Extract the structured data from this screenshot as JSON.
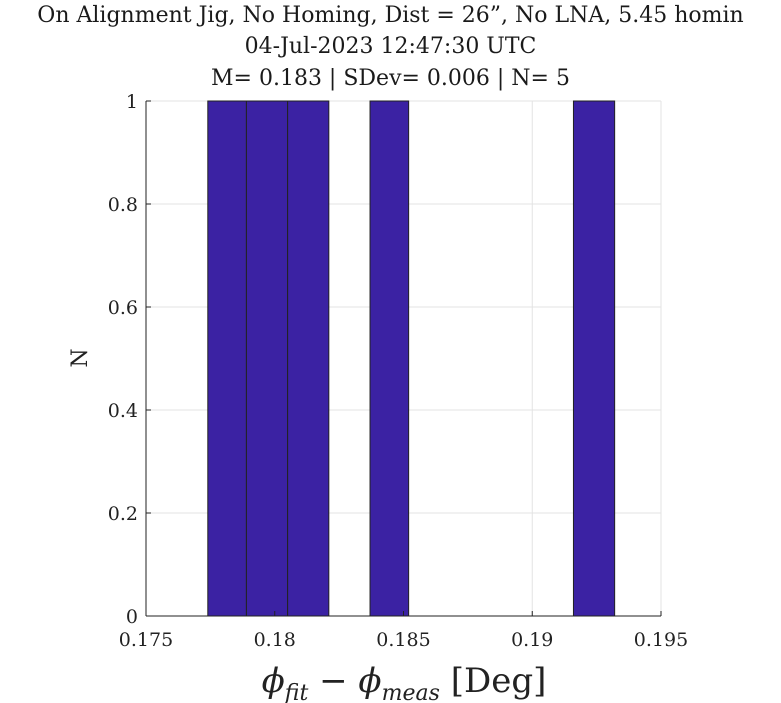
{
  "chart_data": {
    "type": "bar",
    "subtype": "histogram",
    "title_lines": [
      "On Alignment Jig, No Homing, Dist = 26”, No LNA, 5.45 homin",
      "04-Jul-2023 12:47:30 UTC",
      "M= 0.183 | SDev= 0.006 | N= 5"
    ],
    "xlabel_parts": {
      "phi": "ϕ",
      "sub_fit": "fit",
      "minus": " − ",
      "sub_meas": "meas",
      "unit": " [Deg]"
    },
    "ylabel": "N",
    "xlim": [
      0.175,
      0.195
    ],
    "ylim": [
      0,
      1
    ],
    "xticks": [
      "0.175",
      "0.18",
      "0.185",
      "0.19",
      "0.195"
    ],
    "xtick_values": [
      0.175,
      0.18,
      0.185,
      0.19,
      0.195
    ],
    "yticks": [
      "0",
      "0.2",
      "0.4",
      "0.6",
      "0.8",
      "1"
    ],
    "ytick_values": [
      0,
      0.2,
      0.4,
      0.6,
      0.8,
      1
    ],
    "bins": [
      {
        "x_start": 0.1774,
        "x_end": 0.1789,
        "count": 1
      },
      {
        "x_start": 0.1789,
        "x_end": 0.1805,
        "count": 1
      },
      {
        "x_start": 0.1805,
        "x_end": 0.1821,
        "count": 1
      },
      {
        "x_start": 0.1837,
        "x_end": 0.1852,
        "count": 1
      },
      {
        "x_start": 0.1852,
        "x_end": 0.1916,
        "count": 0
      },
      {
        "x_start": 0.1916,
        "x_end": 0.1932,
        "count": 1
      }
    ],
    "bar_color": "#3b22a3",
    "bar_edge_color": "#222222",
    "grid": true
  }
}
